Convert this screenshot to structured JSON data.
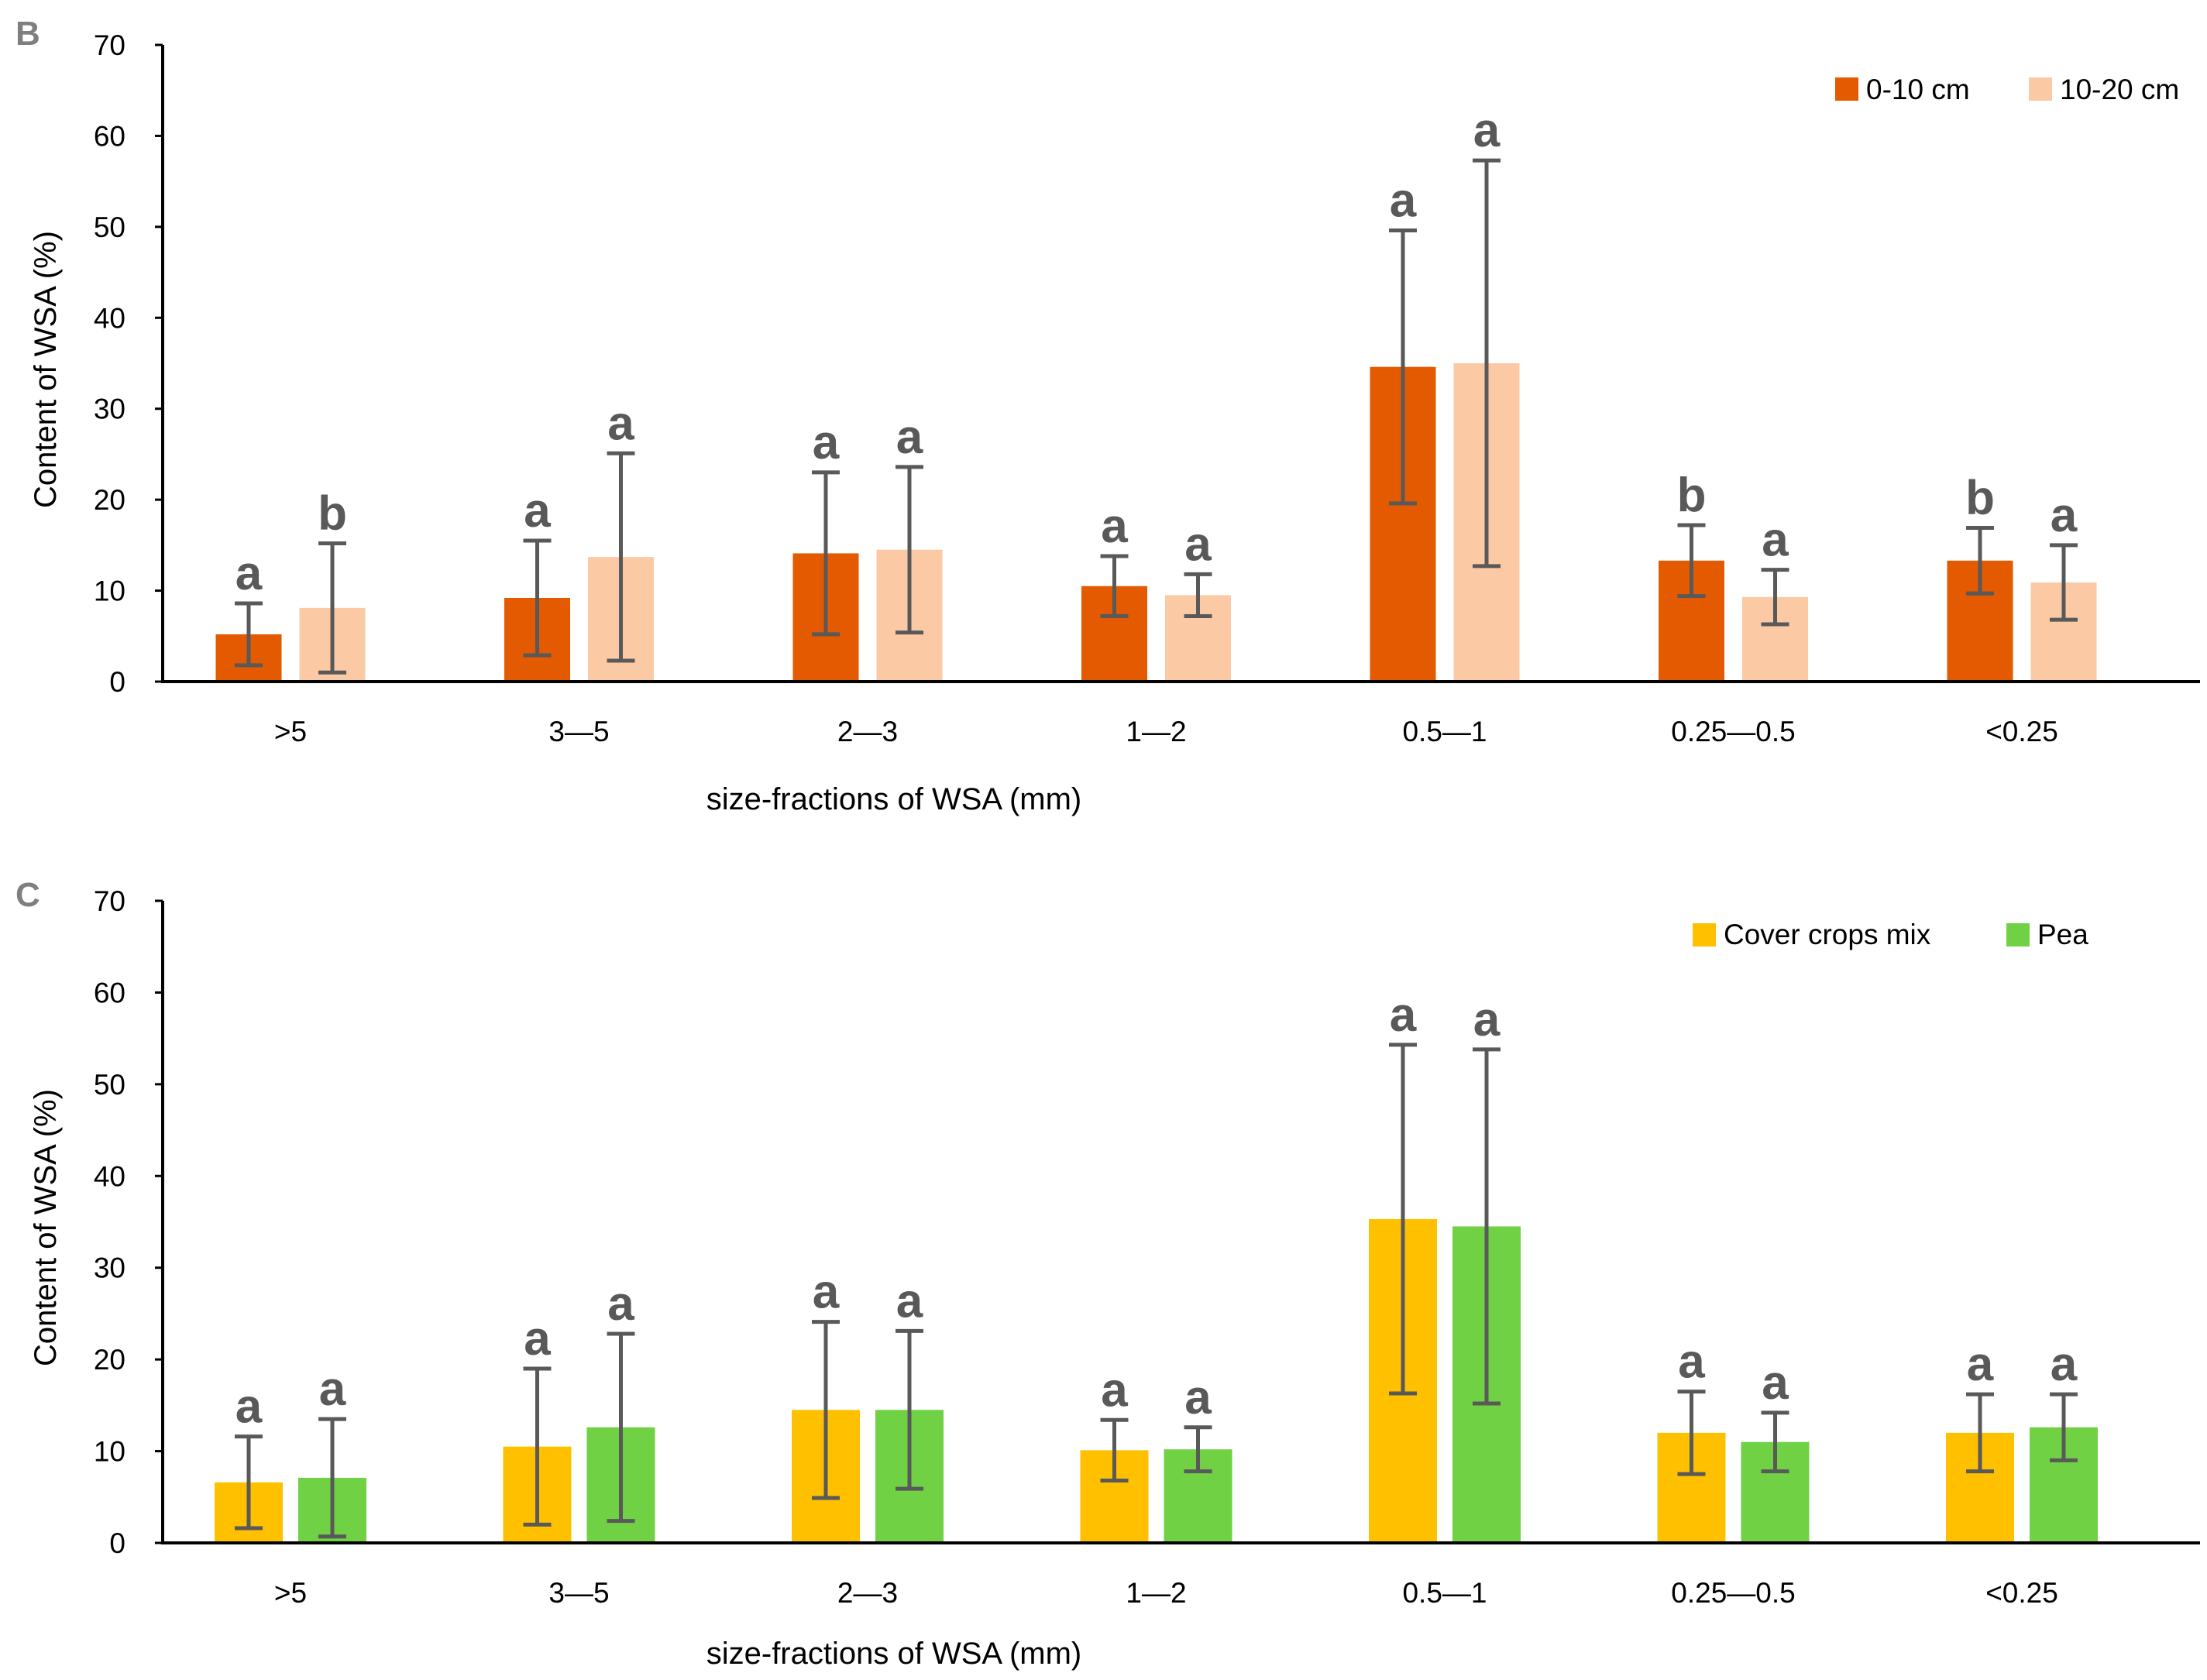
{
  "chart_data": [
    {
      "panel": "B",
      "type": "bar",
      "categories": [
        ">5",
        "3—5",
        "2—3",
        "1—2",
        "0.5—1",
        "0.25—0.5",
        "<0.25"
      ],
      "series": [
        {
          "name": "0-10 cm",
          "color": "#e35a00",
          "values": [
            5.2,
            9.2,
            14.1,
            10.5,
            34.6,
            13.3,
            13.3
          ],
          "errors": [
            3.4,
            6.3,
            8.9,
            3.3,
            15.0,
            3.9,
            3.6
          ],
          "letters": [
            "a",
            "a",
            "a",
            "a",
            "a",
            "b",
            "b"
          ]
        },
        {
          "name": "10-20 cm",
          "color": "#fcc9a5",
          "values": [
            8.1,
            13.7,
            14.5,
            9.5,
            35.0,
            9.3,
            10.9
          ],
          "errors": [
            7.1,
            11.4,
            9.1,
            2.3,
            22.3,
            3.0,
            4.1
          ],
          "letters": [
            "b",
            "a",
            "a",
            "a",
            "a",
            "a",
            "a"
          ]
        }
      ],
      "xlabel": "size-fractions of WSA (mm)",
      "ylabel": "Content of WSA (%)",
      "ylim": [
        0,
        70
      ],
      "yticks": [
        0,
        10,
        20,
        30,
        40,
        50,
        60,
        70
      ],
      "legend_position": "top-right",
      "grid": false
    },
    {
      "panel": "C",
      "type": "bar",
      "categories": [
        ">5",
        "3—5",
        "2—3",
        "1—2",
        "0.5—1",
        "0.25—0.5",
        "<0.25"
      ],
      "series": [
        {
          "name": "Cover crops mix",
          "color": "#ffc000",
          "values": [
            6.6,
            10.5,
            14.5,
            10.1,
            35.3,
            12.0,
            12.0
          ],
          "errors": [
            5.0,
            8.5,
            9.6,
            3.3,
            19.0,
            4.5,
            4.2
          ],
          "letters": [
            "a",
            "a",
            "a",
            "a",
            "a",
            "a",
            "a"
          ]
        },
        {
          "name": "Pea",
          "color": "#70d144",
          "values": [
            7.1,
            12.6,
            14.5,
            10.2,
            34.5,
            11.0,
            12.6
          ],
          "errors": [
            6.4,
            10.2,
            8.6,
            2.4,
            19.3,
            3.2,
            3.6
          ],
          "letters": [
            "a",
            "a",
            "a",
            "a",
            "a",
            "a",
            "a"
          ]
        }
      ],
      "xlabel": "size-fractions of WSA (mm)",
      "ylabel": "Content of WSA (%)",
      "ylim": [
        0,
        70
      ],
      "yticks": [
        0,
        10,
        20,
        30,
        40,
        50,
        60,
        70
      ],
      "legend_position": "top-right",
      "grid": false
    }
  ]
}
